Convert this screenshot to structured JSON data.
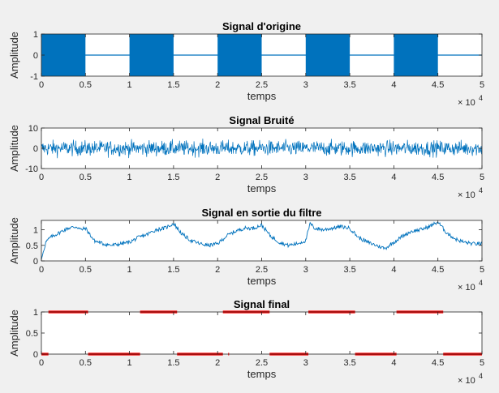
{
  "figure": {
    "background": "#f0f0f0",
    "axes_background": "#ffffff",
    "axis_color": "#262626"
  },
  "chart_data": [
    {
      "type": "line",
      "title": "Signal d'origine",
      "xlabel": "temps",
      "ylabel": "Amplitude",
      "xlim": [
        0,
        50000
      ],
      "ylim": [
        -1,
        1
      ],
      "xticks": [
        0,
        5000,
        10000,
        15000,
        20000,
        25000,
        30000,
        35000,
        40000,
        45000,
        50000
      ],
      "xtick_labels": [
        "0",
        "0.5",
        "1",
        "1.5",
        "2",
        "2.5",
        "3",
        "3.5",
        "4",
        "4.5",
        "5"
      ],
      "yticks": [
        -1,
        0,
        1
      ],
      "ytick_labels": [
        "-1",
        "0",
        "1"
      ],
      "x_exponent_label": "× 10",
      "x_exponent_power": "4",
      "color": "#0072bd",
      "description_series": {
        "bursts_on": [
          [
            0,
            5000
          ],
          [
            10000,
            15000
          ],
          [
            20000,
            25000
          ],
          [
            30000,
            35000
          ],
          [
            40000,
            45000
          ]
        ],
        "amplitude_on": 1,
        "value_off": 0
      }
    },
    {
      "type": "line",
      "title": "Signal Bruité",
      "xlabel": "temps",
      "ylabel": "Amplitude",
      "xlim": [
        0,
        50000
      ],
      "ylim": [
        -10,
        10
      ],
      "xticks": [
        0,
        5000,
        10000,
        15000,
        20000,
        25000,
        30000,
        35000,
        40000,
        45000,
        50000
      ],
      "xtick_labels": [
        "0",
        "0.5",
        "1",
        "1.5",
        "2",
        "2.5",
        "3",
        "3.5",
        "4",
        "4.5",
        "5"
      ],
      "yticks": [
        -10,
        0,
        10
      ],
      "ytick_labels": [
        "-10",
        "0",
        "10"
      ],
      "x_exponent_label": "× 10",
      "x_exponent_power": "4",
      "color": "#0072bd",
      "noise_envelope": [
        -9,
        9
      ]
    },
    {
      "type": "line",
      "title": "Signal en sortie du filtre",
      "xlabel": "temps",
      "ylabel": "Amplitude",
      "xlim": [
        0,
        50000
      ],
      "ylim": [
        0,
        1.3
      ],
      "xticks": [
        0,
        5000,
        10000,
        15000,
        20000,
        25000,
        30000,
        35000,
        40000,
        45000,
        50000
      ],
      "xtick_labels": [
        "0",
        "0.5",
        "1",
        "1.5",
        "2",
        "2.5",
        "3",
        "3.5",
        "4",
        "4.5",
        "5"
      ],
      "yticks": [
        0,
        0.5,
        1
      ],
      "ytick_labels": [
        "0",
        "0.5",
        "1"
      ],
      "x_exponent_label": "× 10",
      "x_exponent_power": "4",
      "color": "#0072bd",
      "x": [
        0,
        500,
        1000,
        2000,
        3000,
        4000,
        4500,
        5000,
        5500,
        6000,
        7000,
        8000,
        9000,
        10000,
        11000,
        12000,
        13000,
        14000,
        15000,
        16000,
        17000,
        18000,
        19000,
        20000,
        21000,
        22000,
        23000,
        24000,
        25000,
        26000,
        27000,
        28000,
        29000,
        30000,
        30500,
        31000,
        32000,
        33000,
        34000,
        35000,
        36000,
        37000,
        38000,
        39000,
        40000,
        41000,
        42000,
        43000,
        44000,
        45000,
        46000,
        47000,
        48000,
        49000,
        50000
      ],
      "y": [
        0.05,
        0.6,
        0.75,
        0.9,
        1.05,
        1.1,
        1.0,
        1.05,
        0.85,
        0.65,
        0.55,
        0.5,
        0.55,
        0.6,
        0.75,
        0.85,
        1.0,
        1.05,
        1.2,
        0.85,
        0.65,
        0.55,
        0.5,
        0.55,
        0.8,
        0.95,
        1.05,
        1.05,
        1.15,
        0.8,
        0.6,
        0.5,
        0.55,
        0.65,
        1.2,
        1.05,
        1.0,
        1.05,
        1.1,
        1.05,
        0.75,
        0.6,
        0.5,
        0.4,
        0.6,
        0.8,
        0.95,
        1.0,
        1.1,
        1.25,
        0.9,
        0.7,
        0.6,
        0.55,
        0.55
      ]
    },
    {
      "type": "scatter",
      "title": "Signal final",
      "xlabel": "temps",
      "ylabel": "Amplitude",
      "xlim": [
        0,
        50000
      ],
      "ylim": [
        0,
        1
      ],
      "xticks": [
        0,
        5000,
        10000,
        15000,
        20000,
        25000,
        30000,
        35000,
        40000,
        45000,
        50000
      ],
      "xtick_labels": [
        "0",
        "0.5",
        "1",
        "1.5",
        "2",
        "2.5",
        "3",
        "3.5",
        "4",
        "4.5",
        "5"
      ],
      "yticks": [
        0,
        0.5,
        1
      ],
      "ytick_labels": [
        "0",
        "0.5",
        "1"
      ],
      "x_exponent_label": "× 10",
      "x_exponent_power": "4",
      "color": "#ff0000",
      "segments": [
        {
          "x0": 0,
          "x1": 800,
          "y": 0
        },
        {
          "x0": 800,
          "x1": 5300,
          "y": 1
        },
        {
          "x0": 5300,
          "x1": 11200,
          "y": 0
        },
        {
          "x0": 11200,
          "x1": 15400,
          "y": 1
        },
        {
          "x0": 15400,
          "x1": 20600,
          "y": 0
        },
        {
          "x0": 21200,
          "x1": 21300,
          "y": 0
        },
        {
          "x0": 20600,
          "x1": 25900,
          "y": 1
        },
        {
          "x0": 25900,
          "x1": 30300,
          "y": 0
        },
        {
          "x0": 30300,
          "x1": 35600,
          "y": 1
        },
        {
          "x0": 35600,
          "x1": 40300,
          "y": 0
        },
        {
          "x0": 40300,
          "x1": 45600,
          "y": 1
        },
        {
          "x0": 45600,
          "x1": 50000,
          "y": 0
        }
      ]
    }
  ]
}
